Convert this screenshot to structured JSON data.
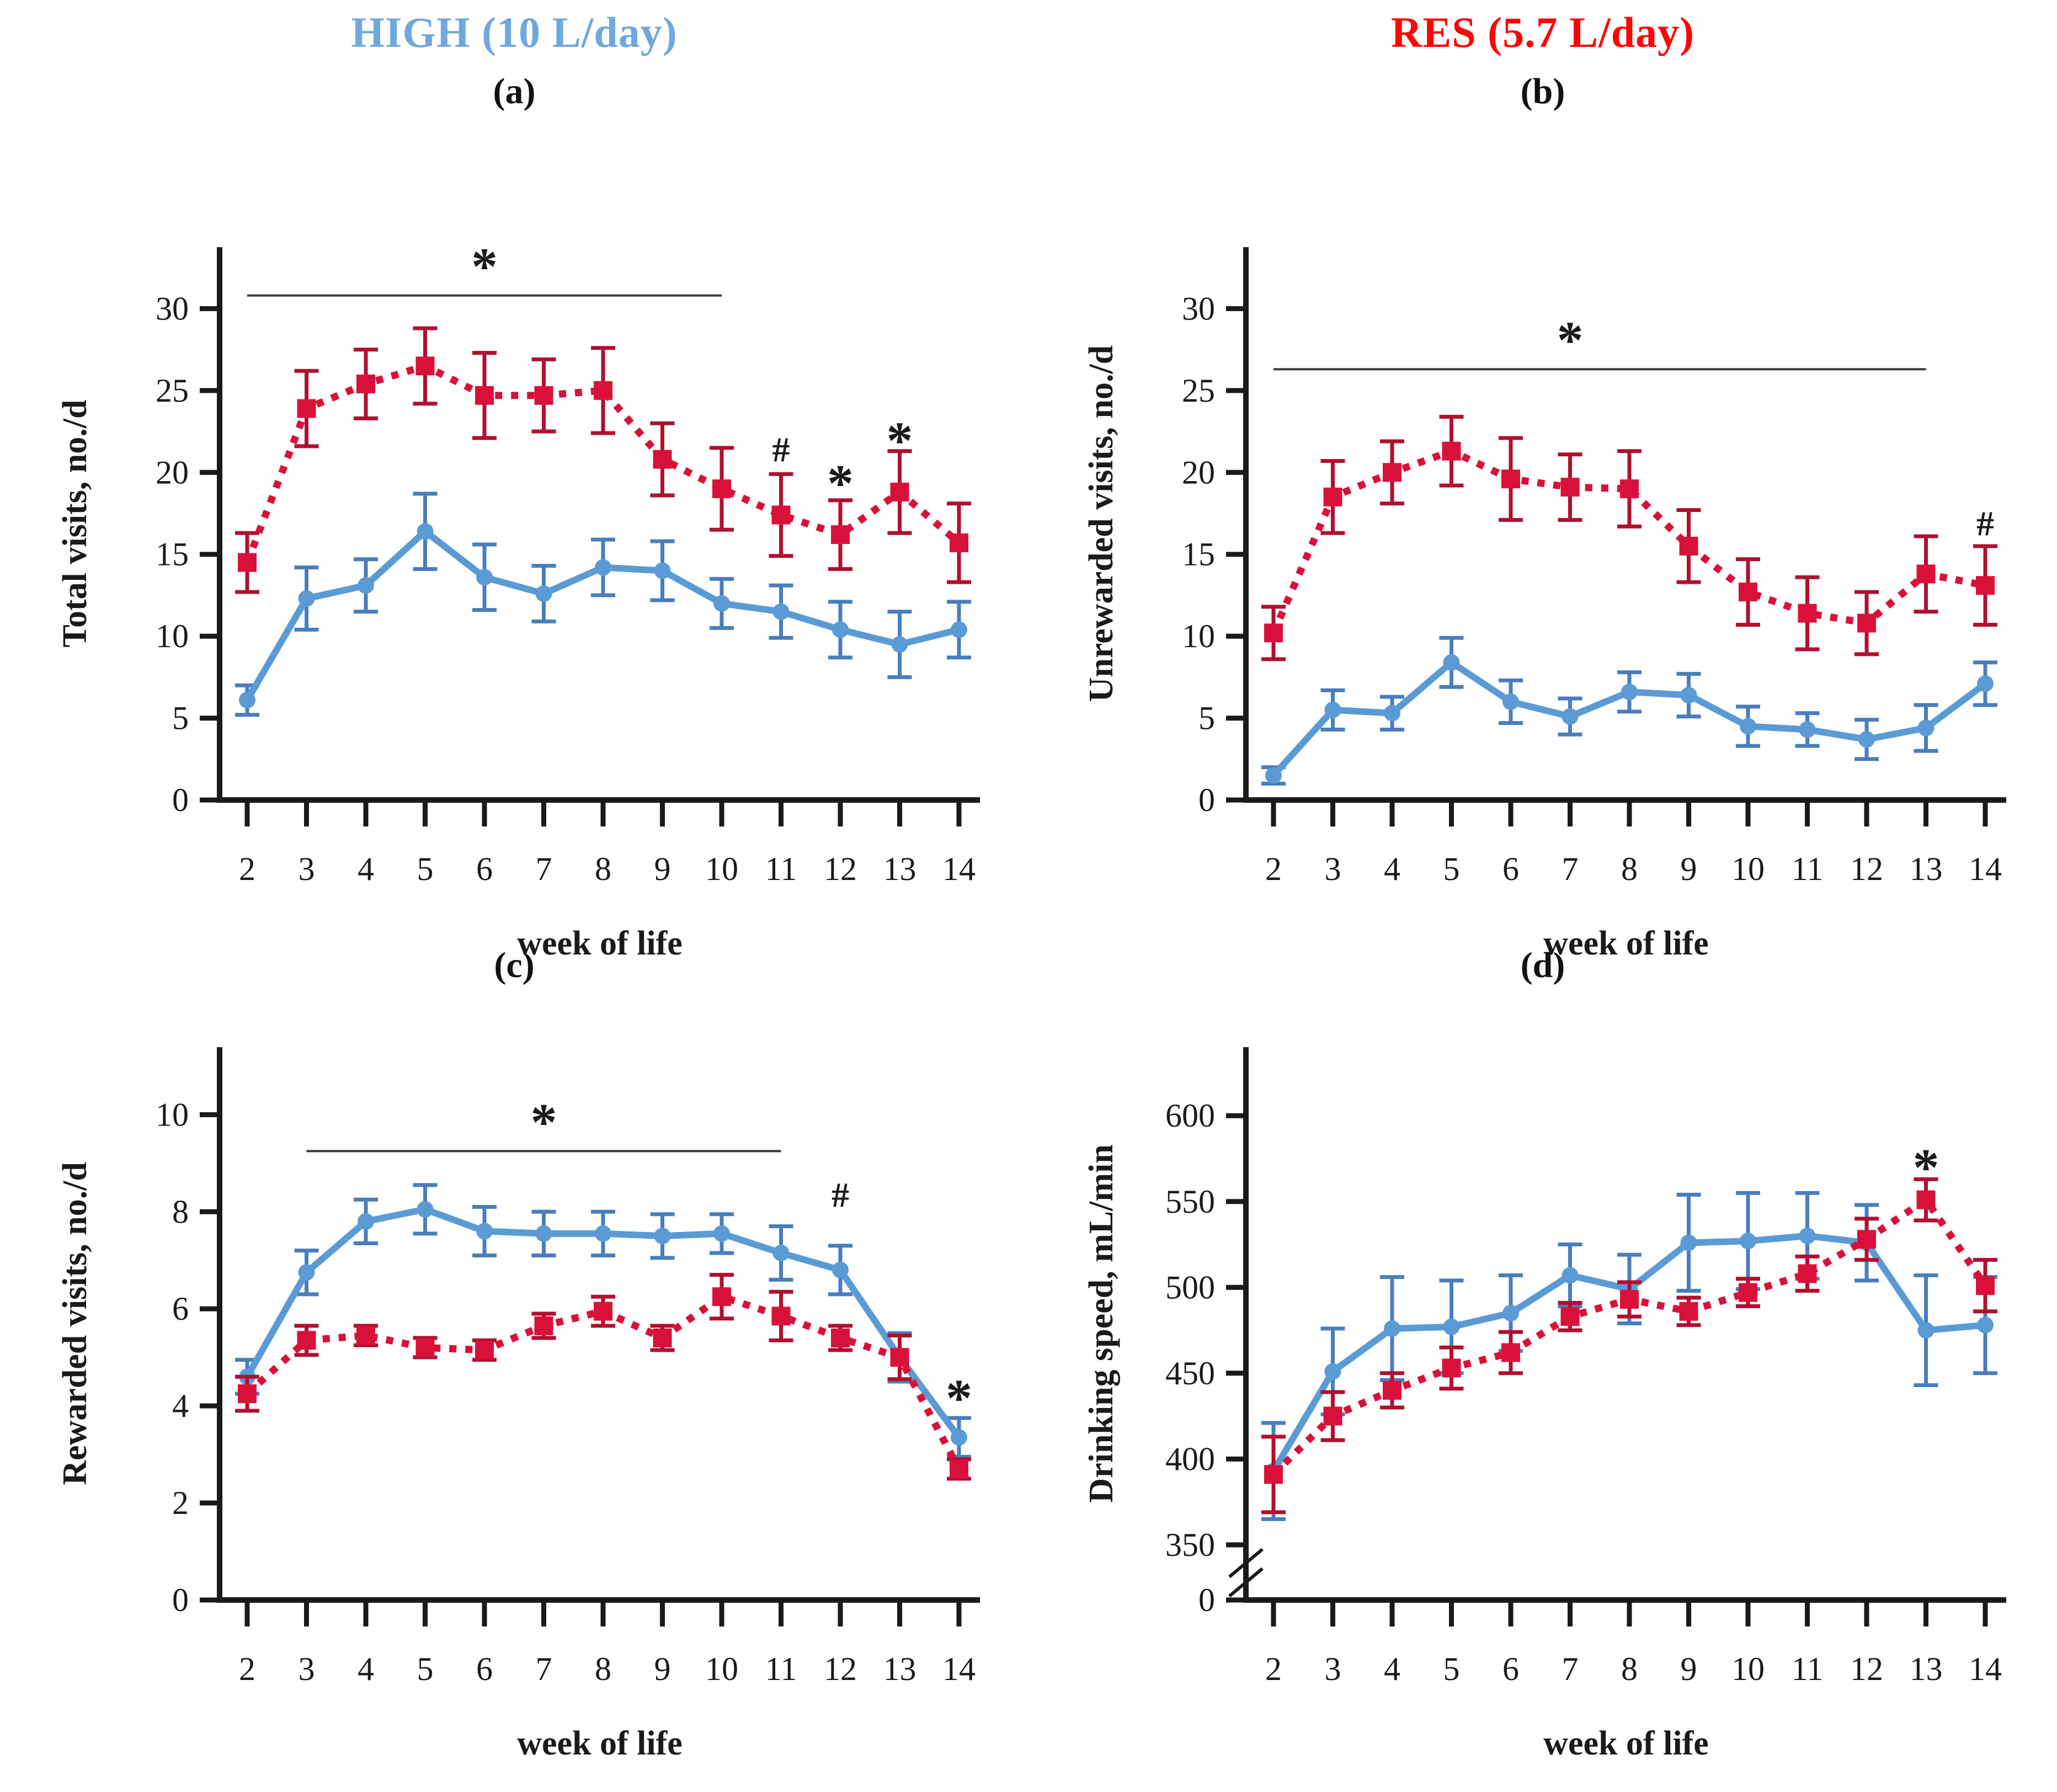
{
  "figure": {
    "background": "#ffffff",
    "header": {
      "left_title": "HIGH (10 L/day)",
      "left_title_color": "#6FA8DC",
      "right_title": "RES (5.7 L/day)",
      "right_title_color": "#FB0707"
    }
  },
  "chart_data": [
    {
      "id": "a",
      "label": "(a)",
      "type": "line",
      "xlabel": "week of life",
      "ylabel": "Total visits, no./d",
      "x": [
        2,
        3,
        4,
        5,
        6,
        7,
        8,
        9,
        10,
        11,
        12,
        13,
        14
      ],
      "yticks": [
        0,
        5,
        10,
        15,
        20,
        25,
        30
      ],
      "ylim": [
        0,
        32
      ],
      "grid": false,
      "legend_position": "none",
      "axis_break": false,
      "series": [
        {
          "name": "HIGH (10 L/day)",
          "color": "#5B9BD5",
          "error_color": "#4A7EBB",
          "line_style": "solid",
          "marker": "circle",
          "values": [
            6.1,
            12.3,
            13.1,
            16.4,
            13.6,
            12.6,
            14.2,
            14.0,
            12.0,
            11.5,
            10.4,
            9.5,
            10.4
          ],
          "errors": [
            0.9,
            1.9,
            1.6,
            2.3,
            2.0,
            1.7,
            1.7,
            1.8,
            1.5,
            1.6,
            1.7,
            2.0,
            1.7
          ]
        },
        {
          "name": "RES (5.7 L/day)",
          "color": "#D9113A",
          "error_color": "#B01030",
          "line_style": "dotted",
          "marker": "square",
          "values": [
            14.5,
            23.9,
            25.4,
            26.5,
            24.7,
            24.7,
            25.0,
            20.8,
            19.0,
            17.4,
            16.2,
            18.8,
            15.7
          ],
          "errors": [
            1.8,
            2.3,
            2.1,
            2.3,
            2.6,
            2.2,
            2.6,
            2.2,
            2.5,
            2.5,
            2.1,
            2.5,
            2.4
          ]
        }
      ],
      "significance_line": {
        "from_week": 2,
        "to_week": 10,
        "at_value": 30.8,
        "symbol": "*",
        "symbol_week": 6
      },
      "annotations": [
        {
          "week": 11,
          "value": 21.4,
          "symbol": "#"
        },
        {
          "week": 12,
          "value": 20.2,
          "symbol": "*"
        },
        {
          "week": 13,
          "value": 22.8,
          "symbol": "*"
        }
      ]
    },
    {
      "id": "b",
      "label": "(b)",
      "type": "line",
      "xlabel": "week of life",
      "ylabel": "Unrewarded visits, no./d",
      "x": [
        2,
        3,
        4,
        5,
        6,
        7,
        8,
        9,
        10,
        11,
        12,
        13,
        14
      ],
      "yticks": [
        0,
        5,
        10,
        15,
        20,
        25,
        30
      ],
      "ylim": [
        0,
        32
      ],
      "grid": false,
      "legend_position": "none",
      "axis_break": false,
      "series": [
        {
          "name": "HIGH (10 L/day)",
          "color": "#5B9BD5",
          "error_color": "#4A7EBB",
          "line_style": "solid",
          "marker": "circle",
          "values": [
            1.5,
            5.5,
            5.3,
            8.4,
            6.0,
            5.1,
            6.6,
            6.4,
            4.5,
            4.3,
            3.7,
            4.4,
            7.1
          ],
          "errors": [
            0.5,
            1.2,
            1.0,
            1.5,
            1.3,
            1.1,
            1.2,
            1.3,
            1.2,
            1.0,
            1.2,
            1.4,
            1.3
          ]
        },
        {
          "name": "RES (5.7 L/day)",
          "color": "#D9113A",
          "error_color": "#B01030",
          "line_style": "dotted",
          "marker": "square",
          "values": [
            10.2,
            18.5,
            20.0,
            21.3,
            19.6,
            19.1,
            19.0,
            15.5,
            12.7,
            11.4,
            10.8,
            13.8,
            13.1
          ],
          "errors": [
            1.6,
            2.2,
            1.9,
            2.1,
            2.5,
            2.0,
            2.3,
            2.2,
            2.0,
            2.2,
            1.9,
            2.3,
            2.4
          ]
        }
      ],
      "significance_line": {
        "from_week": 2,
        "to_week": 13,
        "at_value": 26.3,
        "symbol": "*",
        "symbol_week": 7
      },
      "annotations": [
        {
          "week": 14,
          "value": 16.9,
          "symbol": "#"
        }
      ]
    },
    {
      "id": "c",
      "label": "(c)",
      "type": "line",
      "xlabel": "week of life",
      "ylabel": "Rewarded visits, no./d",
      "x": [
        2,
        3,
        4,
        5,
        6,
        7,
        8,
        9,
        10,
        11,
        12,
        13,
        14
      ],
      "yticks": [
        0,
        2,
        4,
        6,
        8,
        10
      ],
      "ylim": [
        0,
        10.8
      ],
      "grid": false,
      "legend_position": "none",
      "axis_break": false,
      "series": [
        {
          "name": "HIGH (10 L/day)",
          "color": "#5B9BD5",
          "error_color": "#4A7EBB",
          "line_style": "solid",
          "marker": "circle",
          "values": [
            4.6,
            6.75,
            7.8,
            8.05,
            7.6,
            7.55,
            7.55,
            7.5,
            7.55,
            7.15,
            6.8,
            5.0,
            3.35
          ],
          "errors": [
            0.35,
            0.45,
            0.45,
            0.5,
            0.5,
            0.45,
            0.45,
            0.45,
            0.4,
            0.55,
            0.5,
            0.5,
            0.4
          ]
        },
        {
          "name": "RES (5.7 L/day)",
          "color": "#D9113A",
          "error_color": "#B01030",
          "line_style": "dotted",
          "marker": "square",
          "values": [
            4.25,
            5.35,
            5.45,
            5.2,
            5.15,
            5.65,
            5.95,
            5.4,
            6.25,
            5.85,
            5.4,
            5.0,
            2.7
          ],
          "errors": [
            0.35,
            0.3,
            0.2,
            0.2,
            0.2,
            0.25,
            0.3,
            0.25,
            0.45,
            0.5,
            0.25,
            0.45,
            0.2
          ]
        }
      ],
      "significance_line": {
        "from_week": 3,
        "to_week": 11,
        "at_value": 9.25,
        "symbol": "*",
        "symbol_week": 7
      },
      "annotations": [
        {
          "week": 12,
          "value": 8.35,
          "symbol": "#"
        },
        {
          "week": 14,
          "value": 4.45,
          "symbol": "*"
        }
      ]
    },
    {
      "id": "d",
      "label": "(d)",
      "type": "line",
      "xlabel": "week of life",
      "ylabel": "Drinking speed, mL/min",
      "x": [
        2,
        3,
        4,
        5,
        6,
        7,
        8,
        9,
        10,
        11,
        12,
        13,
        14
      ],
      "yticks": [
        0,
        350,
        400,
        450,
        500,
        550,
        600
      ],
      "ylim": [
        350,
        620
      ],
      "grid": false,
      "legend_position": "none",
      "axis_break": true,
      "series": [
        {
          "name": "HIGH (10 L/day)",
          "color": "#5B9BD5",
          "error_color": "#4A7EBB",
          "line_style": "solid",
          "marker": "circle",
          "values": [
            393,
            451,
            476,
            477,
            485,
            507,
            499,
            526,
            527,
            530,
            526,
            475,
            478
          ],
          "errors": [
            28,
            25,
            30,
            27,
            22,
            18,
            20,
            28,
            28,
            25,
            22,
            32,
            28
          ]
        },
        {
          "name": "RES (5.7 L/day)",
          "color": "#D9113A",
          "error_color": "#B01030",
          "line_style": "dotted",
          "marker": "square",
          "values": [
            391,
            425,
            440,
            453,
            462,
            483,
            493,
            486,
            497,
            508,
            528,
            551,
            501
          ],
          "errors": [
            22,
            14,
            10,
            12,
            12,
            8,
            10,
            8,
            8,
            10,
            12,
            12,
            15
          ]
        }
      ],
      "significance_line": null,
      "annotations": [
        {
          "week": 13,
          "value": 578,
          "symbol": "*"
        }
      ]
    }
  ]
}
